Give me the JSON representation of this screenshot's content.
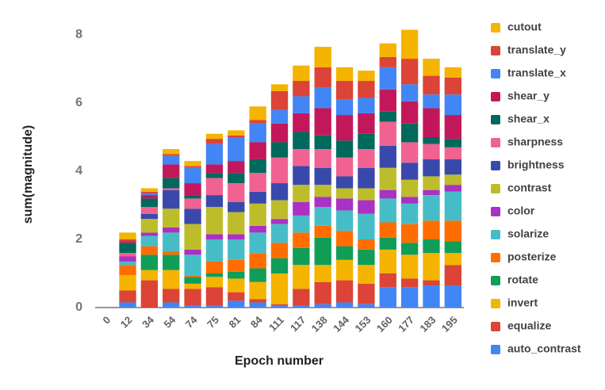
{
  "chart_data": {
    "type": "stacked_bar",
    "x_label": "Epoch number",
    "y_label": "sum(magnitude)",
    "categories": [
      "0",
      "12",
      "34",
      "54",
      "74",
      "75",
      "81",
      "84",
      "111",
      "117",
      "138",
      "144",
      "153",
      "160",
      "177",
      "183",
      "195"
    ],
    "ylim": [
      0,
      8.5
    ],
    "yticks": [
      0,
      2,
      4,
      6,
      8
    ],
    "grid": false,
    "legend": "right",
    "series": [
      {
        "name": "auto_contrast",
        "color": "#4285f4",
        "values": [
          0,
          0.15,
          0,
          0.15,
          0.05,
          0.05,
          0.2,
          0.15,
          0.05,
          0.05,
          0.1,
          0.15,
          0.1,
          0.6,
          0.6,
          0.65,
          0.65
        ]
      },
      {
        "name": "equalize",
        "color": "#db4437",
        "values": [
          0,
          0.35,
          0.8,
          0.4,
          0.5,
          0.55,
          0.25,
          0.1,
          0.05,
          0.5,
          0.65,
          0.65,
          0.6,
          0.4,
          0.25,
          0.15,
          0.6
        ]
      },
      {
        "name": "invert",
        "color": "#f4b400",
        "values": [
          0,
          0.45,
          0.3,
          0.55,
          0.15,
          0.3,
          0.4,
          0.5,
          0.9,
          0.7,
          0.5,
          0.6,
          0.55,
          0.7,
          0.7,
          0.8,
          0.35
        ]
      },
      {
        "name": "rotate",
        "color": "#0f9d58",
        "values": [
          0,
          0,
          0.45,
          0.45,
          0.2,
          0.1,
          0.2,
          0.4,
          0.45,
          0.5,
          0.8,
          0.4,
          0.45,
          0.35,
          0.35,
          0.4,
          0.35
        ]
      },
      {
        "name": "posterize",
        "color": "#ff6d00",
        "values": [
          0,
          0.3,
          0.25,
          0.1,
          0.05,
          0.35,
          0.35,
          0.45,
          0.45,
          0.45,
          0.35,
          0.45,
          0.3,
          0.45,
          0.55,
          0.55,
          0.6
        ]
      },
      {
        "name": "solarize",
        "color": "#46bdc6",
        "values": [
          0,
          0.1,
          0.3,
          0.55,
          0.6,
          0.65,
          0.6,
          0.6,
          0.55,
          0.5,
          0.55,
          0.6,
          0.75,
          0.7,
          0.6,
          0.75,
          0.85
        ]
      },
      {
        "name": "color",
        "color": "#ab30c4",
        "values": [
          0,
          0.15,
          0.1,
          0.15,
          0.15,
          0.15,
          0.15,
          0.2,
          0.15,
          0.4,
          0.3,
          0.35,
          0.4,
          0.25,
          0.2,
          0.15,
          0.2
        ]
      },
      {
        "name": "contrast",
        "color": "#bdbd2c",
        "values": [
          0,
          0,
          0.4,
          0.55,
          0.75,
          0.8,
          0.65,
          0.65,
          0.55,
          0.5,
          0.35,
          0.3,
          0.35,
          0.65,
          0.5,
          0.4,
          0.3
        ]
      },
      {
        "name": "brightness",
        "color": "#3949ab",
        "values": [
          0,
          0,
          0.15,
          0.55,
          0.45,
          0.35,
          0.3,
          0.35,
          0.5,
          0.55,
          0.5,
          0.35,
          0.6,
          0.65,
          0.5,
          0.5,
          0.45
        ]
      },
      {
        "name": "sharpness",
        "color": "#f06292",
        "values": [
          0,
          0.1,
          0.2,
          0.05,
          0.3,
          0.5,
          0.55,
          0.55,
          0.75,
          0.5,
          0.55,
          0.55,
          0.55,
          0.7,
          0.6,
          0.45,
          0.35
        ]
      },
      {
        "name": "shear_x",
        "color": "#00695c",
        "values": [
          0,
          0.3,
          0.25,
          0.3,
          0.1,
          0.15,
          0.3,
          0.4,
          0.45,
          0.5,
          0.4,
          0.5,
          0.45,
          0.3,
          0.55,
          0.2,
          0.25
        ]
      },
      {
        "name": "shear_y",
        "color": "#c2185b",
        "values": [
          0,
          0.05,
          0.1,
          0.4,
          0.35,
          0.25,
          0.35,
          0.5,
          0.55,
          0.55,
          0.8,
          0.75,
          0.6,
          0.65,
          0.65,
          0.85,
          0.7
        ]
      },
      {
        "name": "translate_x",
        "color": "#4285f4",
        "values": [
          0,
          0,
          0.05,
          0.25,
          0.45,
          0.6,
          0.7,
          0.55,
          0.4,
          0.5,
          0.6,
          0.45,
          0.45,
          0.65,
          0.5,
          0.4,
          0.6
        ]
      },
      {
        "name": "translate_y",
        "color": "#db4437",
        "values": [
          0,
          0.05,
          0.05,
          0.05,
          0.05,
          0.15,
          0.05,
          0.1,
          0.55,
          0.45,
          0.6,
          0.55,
          0.5,
          0.3,
          0.75,
          0.55,
          0.5
        ]
      },
      {
        "name": "cutout",
        "color": "#f4b400",
        "values": [
          0,
          0.2,
          0.1,
          0.15,
          0.15,
          0.15,
          0.15,
          0.4,
          0.2,
          0.45,
          0.6,
          0.4,
          0.3,
          0.4,
          0.85,
          0.5,
          0.3
        ]
      }
    ]
  }
}
